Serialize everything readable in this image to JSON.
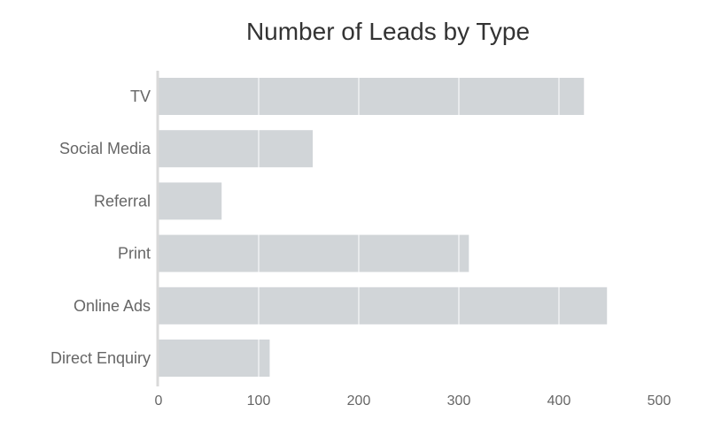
{
  "chart_data": {
    "type": "bar",
    "orientation": "horizontal",
    "title": "Number of Leads by Type",
    "xlabel": "",
    "ylabel": "",
    "categories": [
      "TV",
      "Social Media",
      "Referral",
      "Print",
      "Online Ads",
      "Direct Enquiry"
    ],
    "values": [
      425,
      154,
      63,
      310,
      448,
      111
    ],
    "xlim": [
      0,
      500
    ],
    "xticks": [
      "0",
      "100",
      "200",
      "300",
      "400",
      "500"
    ],
    "grid": true,
    "bar_color": "#d1d5d8",
    "grid_color": "#ffffff",
    "axis_color": "#d9d9d9"
  }
}
